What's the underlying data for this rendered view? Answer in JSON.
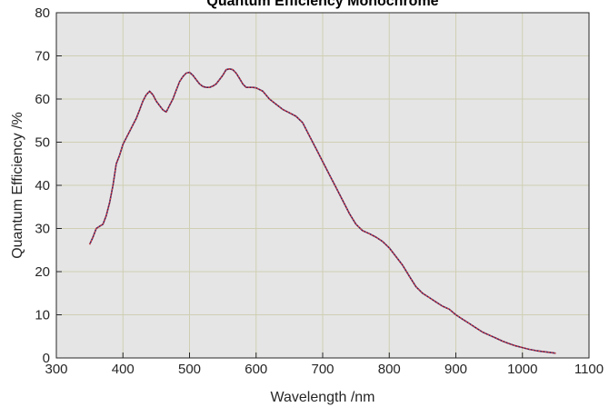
{
  "chart_data": {
    "type": "line",
    "title": "Quantum Efficiency Monochrome",
    "xlabel": "Wavelength /nm",
    "ylabel": "Quantum Efficiency /%",
    "xlim": [
      300,
      1100
    ],
    "ylim": [
      0,
      80
    ],
    "xticks": [
      300,
      400,
      500,
      600,
      700,
      800,
      900,
      1000,
      1100
    ],
    "yticks": [
      0,
      10,
      20,
      30,
      40,
      50,
      60,
      70,
      80
    ],
    "grid": true,
    "colors": {
      "plot_background": "#e5e5e5",
      "grid": "#cfcfb4",
      "axis": "#262626",
      "series_primary": "#e8403a",
      "series_secondary": "#3a1f5e"
    },
    "series": [
      {
        "x": [
          350,
          355,
          360,
          365,
          370,
          375,
          380,
          385,
          390,
          395,
          400,
          405,
          410,
          415,
          420,
          425,
          430,
          435,
          440,
          445,
          450,
          455,
          460,
          465,
          470,
          475,
          480,
          485,
          490,
          495,
          500,
          505,
          510,
          515,
          520,
          525,
          530,
          535,
          540,
          545,
          550,
          555,
          560,
          565,
          570,
          575,
          580,
          585,
          590,
          595,
          600,
          610,
          620,
          630,
          640,
          650,
          660,
          670,
          680,
          690,
          700,
          710,
          720,
          730,
          740,
          750,
          760,
          770,
          780,
          790,
          800,
          810,
          820,
          830,
          840,
          850,
          860,
          870,
          880,
          890,
          900,
          910,
          920,
          930,
          940,
          950,
          960,
          970,
          980,
          990,
          1000,
          1010,
          1020,
          1030,
          1040,
          1050
        ],
        "y": [
          26.3,
          28,
          30,
          30.5,
          31,
          33,
          36,
          40,
          45,
          47,
          49.5,
          51,
          52.5,
          54,
          55.5,
          57.5,
          59.5,
          61,
          61.8,
          61,
          59.5,
          58.5,
          57.5,
          57,
          58.5,
          60,
          62,
          64,
          65.2,
          66,
          66.2,
          65.5,
          64.5,
          63.5,
          62.9,
          62.7,
          62.7,
          63,
          63.5,
          64.5,
          65.5,
          66.8,
          67,
          66.8,
          66,
          64.8,
          63.5,
          62.7,
          62.7,
          62.7,
          62.6,
          61.8,
          60,
          58.8,
          57.6,
          56.8,
          56,
          54.5,
          51.5,
          48.5,
          45.5,
          42.5,
          39.5,
          36.5,
          33.5,
          31,
          29.5,
          28.8,
          28,
          27,
          25.5,
          23.5,
          21.5,
          19,
          16.5,
          15,
          14,
          13,
          12,
          11.3,
          10,
          9,
          8,
          7,
          6,
          5.3,
          4.6,
          3.9,
          3.3,
          2.8,
          2.4,
          2.0,
          1.7,
          1.5,
          1.3,
          1.1
        ]
      }
    ]
  }
}
